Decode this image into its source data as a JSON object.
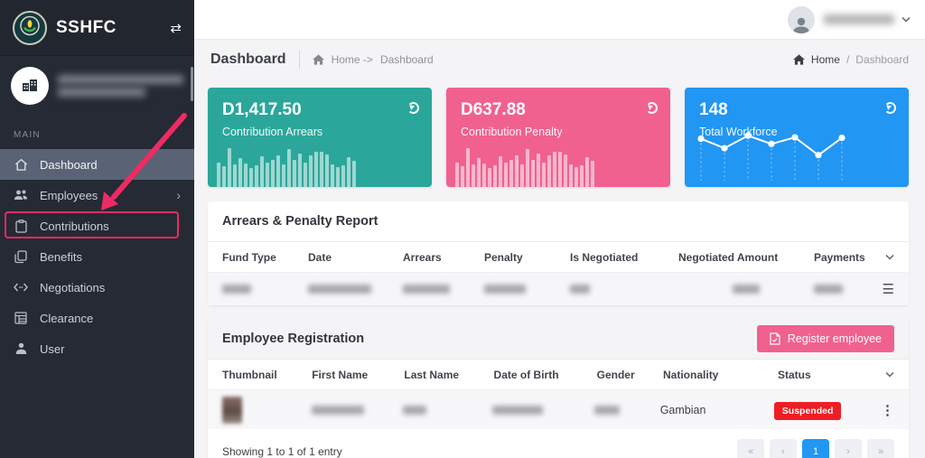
{
  "brand": {
    "name": "SSHFC"
  },
  "sidebar": {
    "section_label": "MAIN",
    "items": [
      {
        "label": "Dashboard"
      },
      {
        "label": "Employees",
        "chevron": "›"
      },
      {
        "label": "Contributions"
      },
      {
        "label": "Benefits"
      },
      {
        "label": "Negotiations"
      },
      {
        "label": "Clearance"
      },
      {
        "label": "User"
      }
    ]
  },
  "breadcrumb": {
    "page_title": "Dashboard",
    "left_home": "Home ->",
    "left_current": "Dashboard",
    "right_home": "Home",
    "right_separator": "/",
    "right_current": "Dashboard"
  },
  "cards": [
    {
      "value": "D1,417.50",
      "label": "Contribution Arrears",
      "color": "#2aa79a",
      "type": "bar",
      "bars": [
        52,
        45,
        82,
        48,
        62,
        50,
        40,
        46,
        66,
        52,
        58,
        68,
        48,
        80,
        58,
        72,
        52,
        68,
        75,
        75,
        70,
        48,
        42,
        46,
        64,
        55
      ]
    },
    {
      "value": "D637.88",
      "label": "Contribution Penalty",
      "color": "#f0618f",
      "type": "bar",
      "bars": [
        52,
        45,
        82,
        48,
        62,
        50,
        40,
        46,
        66,
        52,
        58,
        68,
        48,
        80,
        58,
        72,
        52,
        68,
        75,
        75,
        70,
        48,
        42,
        46,
        64,
        55
      ]
    },
    {
      "value": "148",
      "label": "Total Workforce",
      "color": "#2196f3",
      "type": "line",
      "points": [
        24,
        46,
        17,
        36,
        21,
        62,
        22
      ]
    }
  ],
  "arrears": {
    "title": "Arrears & Penalty Report",
    "columns": [
      "Fund Type",
      "Date",
      "Arrears",
      "Penalty",
      "Is Negotiated",
      "Negotiated Amount",
      "Payments"
    ]
  },
  "employees": {
    "title": "Employee Registration",
    "register_button": "Register employee",
    "register_color": "#f0618f",
    "columns": [
      "Thumbnail",
      "First Name",
      "Last Name",
      "Date of Birth",
      "Gender",
      "Nationality",
      "Status"
    ],
    "row": {
      "nationality": "Gambian",
      "status": "Suspended",
      "status_color": "#ef1e24"
    }
  },
  "pagination": {
    "showing": "Showing 1 to 1 of 1 entry",
    "buttons": [
      "«",
      "‹",
      "1",
      "›",
      "»"
    ],
    "active": "1"
  },
  "annotation": {
    "color": "#ee2b63"
  }
}
